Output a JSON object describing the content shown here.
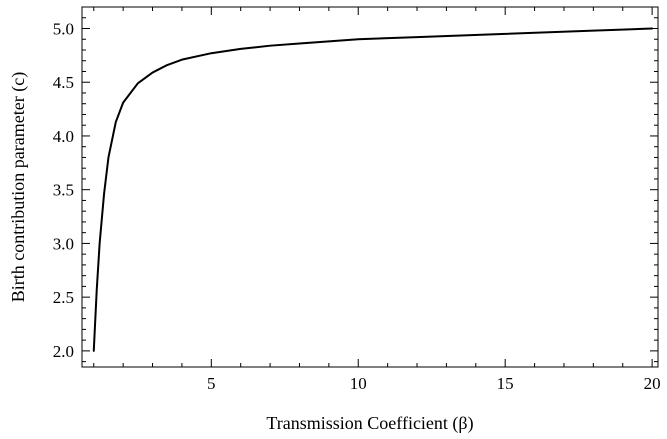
{
  "chart_data": {
    "type": "line",
    "title": "",
    "xlabel": "Transmission Coefficient (β)",
    "ylabel": "Birth contribution parameter (c)",
    "xlim": [
      0.6,
      20.2
    ],
    "ylim": [
      1.85,
      5.2
    ],
    "x_major_ticks": [
      5,
      10,
      15,
      20
    ],
    "x_tick_labels": [
      "5",
      "10",
      "15",
      "20"
    ],
    "y_major_ticks": [
      2.0,
      2.5,
      3.0,
      3.5,
      4.0,
      4.5,
      5.0
    ],
    "y_tick_labels": [
      "2.0",
      "2.5",
      "3.0",
      "3.5",
      "4.0",
      "4.5",
      "5.0"
    ],
    "x_minor_step": 1,
    "y_minor_step": 0.1,
    "grid": false,
    "legend": "none",
    "line_color": "#000000",
    "series": [
      {
        "x": [
          1.0,
          1.1,
          1.2,
          1.35,
          1.5,
          1.75,
          2,
          2.5,
          3,
          3.5,
          4,
          5,
          6,
          7,
          8,
          10,
          12,
          15,
          18,
          20
        ],
        "y": [
          2.0,
          2.56,
          3.0,
          3.46,
          3.8,
          4.13,
          4.31,
          4.49,
          4.59,
          4.66,
          4.71,
          4.77,
          4.81,
          4.84,
          4.86,
          4.9,
          4.92,
          4.95,
          4.98,
          5.0
        ]
      }
    ]
  }
}
